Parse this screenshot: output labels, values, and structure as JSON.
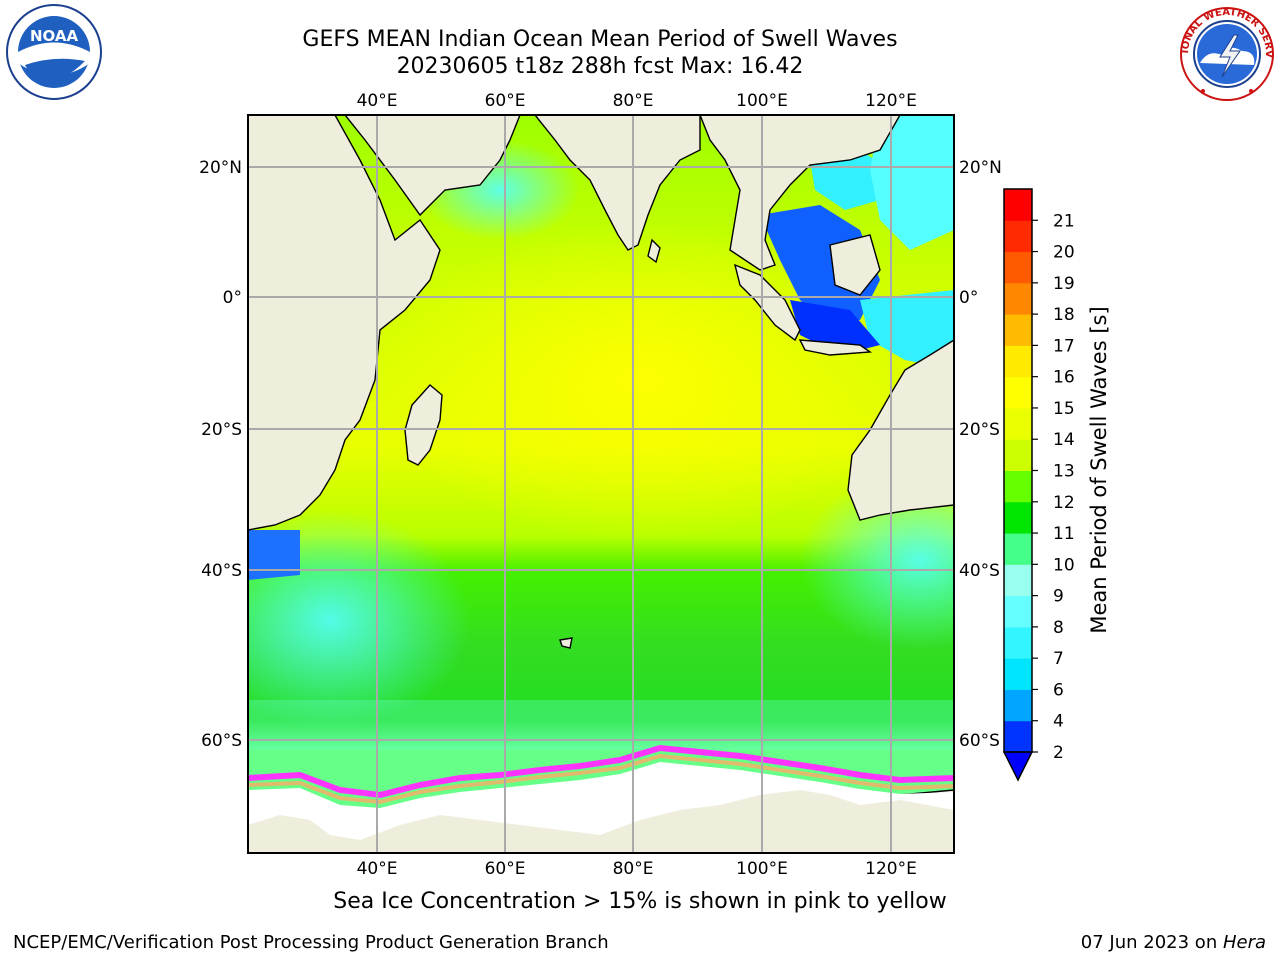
{
  "header": {
    "title_line1": "GEFS MEAN Indian Ocean Mean Period of Swell Waves",
    "title_line2": "20230605 t18z 288h fcst   Max: 16.42"
  },
  "logos": {
    "left": {
      "icon": "noaa-logo",
      "text": "NOAA"
    },
    "right": {
      "icon": "nws-logo",
      "text": "NATIONAL WEATHER SERVICE"
    }
  },
  "map": {
    "lon_ticks": [
      "40°E",
      "60°E",
      "80°E",
      "100°E",
      "120°E"
    ],
    "lat_ticks_left": [
      "20°N",
      "0°",
      "20°S",
      "40°S",
      "60°S"
    ],
    "lat_ticks_right": [
      "20°N",
      "0°",
      "20°S",
      "40°S",
      "60°S"
    ],
    "colors": {
      "land": "#efeddc",
      "ocean_mean": "#c8f500",
      "grid": "#aaaaaa"
    }
  },
  "colorbar": {
    "label": "Mean Period of Swell Waves [s]",
    "ticks": [
      "2",
      "4",
      "6",
      "7",
      "8",
      "9",
      "10",
      "11",
      "12",
      "13",
      "14",
      "15",
      "16",
      "17",
      "18",
      "19",
      "20",
      "21"
    ],
    "colors": [
      "#0033ff",
      "#00a6ff",
      "#00e5ff",
      "#33f5ff",
      "#66ffff",
      "#99ffee",
      "#44ff88",
      "#00e600",
      "#66ff00",
      "#ccff00",
      "#eaff00",
      "#ffff00",
      "#ffea00",
      "#ffbb00",
      "#ff8800",
      "#ff5a00",
      "#ff2a00",
      "#ff0000"
    ],
    "underflow_color": "#0000ff"
  },
  "footer": {
    "note": "Sea Ice Concentration > 15% is shown in pink to yellow",
    "left": "NCEP/EMC/Verification Post Processing Product Generation Branch",
    "right_prefix": "07 Jun 2023 on ",
    "right_host": "Hera"
  }
}
